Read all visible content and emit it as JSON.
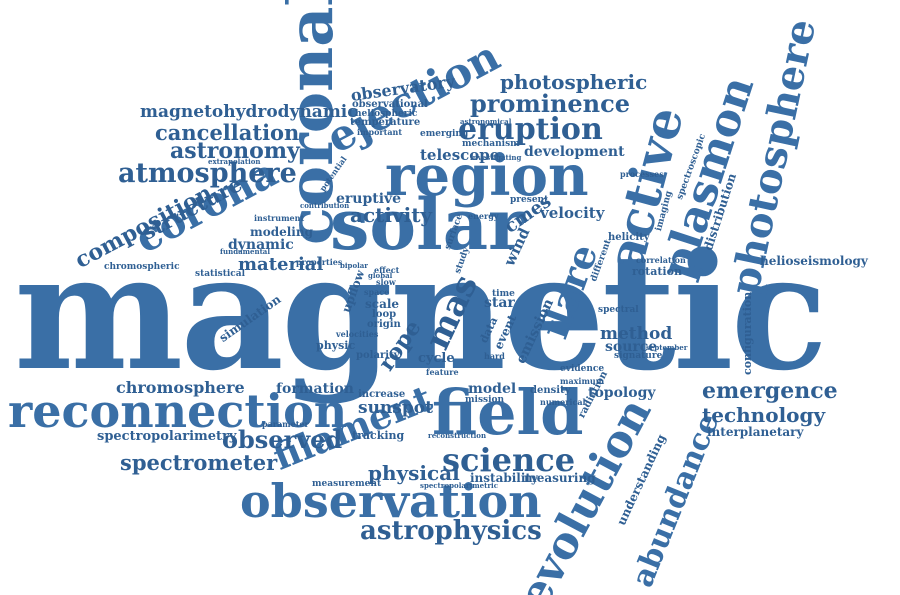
{
  "cloud": {
    "magnetic": "magnetic",
    "solar": "solar",
    "region": "region",
    "coronal": "coronal",
    "field": "field",
    "observation": "observation",
    "reconnection": "reconnection",
    "evolution": "evolution",
    "active": "active",
    "plasmon": "plasmon",
    "photosphere": "photosphere",
    "ejection": "ejection",
    "corona": "corona",
    "flare": "flare",
    "eruption": "eruption",
    "prominence": "prominence",
    "photospheric": "photospheric",
    "atmosphere": "atmosphere",
    "astronomy": "astronomy",
    "cancellation": "cancellation",
    "magnetohydrodynamic": "magnetohydrodynamic",
    "composition": "composition",
    "structure": "structure",
    "observatory": "observatory",
    "abundance": "abundance",
    "filament": "filament",
    "science": "science",
    "spectrometer": "spectrometer",
    "observed": "observed",
    "astrophysics": "astrophysics",
    "emergence": "emergence",
    "technology": "technology",
    "chromosphere": "chromosphere",
    "spectropolarimetry": "spectropolarimetry",
    "physical": "physical",
    "sunspot": "sunspot",
    "mas": "mas",
    "rope": "rope",
    "activity": "activity",
    "eruptive": "eruptive",
    "material": "material",
    "dynamic": "dynamic",
    "modeling": "modeling",
    "telescope": "telescope",
    "development": "development",
    "velocity": "velocity",
    "method": "method",
    "source": "source",
    "topology": "topology",
    "model": "model",
    "interplanetary": "interplanetary",
    "helioseismology": "helioseismology",
    "configuration": "configuration",
    "distribution": "distribution",
    "understanding": "understanding",
    "simulation": "simulation",
    "formation": "formation",
    "tracking": "tracking",
    "instability": "instability",
    "measuring": "measuring",
    "measurement": "measurement",
    "chromospheric": "chromospheric",
    "statistical": "statistical",
    "physic": "physic",
    "scale": "scale",
    "loop": "loop",
    "origin": "origin",
    "cycle": "cycle",
    "polarity": "polarity",
    "star": "star",
    "time": "time",
    "emission": "emission",
    "rotation": "rotation",
    "helicity": "helicity",
    "correlation": "correlation",
    "signature": "signature",
    "evidence": "evidence",
    "maximum": "maximum",
    "spectral": "spectral",
    "density": "density",
    "numerical": "numerical",
    "radiation": "radiation",
    "mission": "mission",
    "increase": "increase",
    "observational": "observational",
    "heliospheric": "heliospheric",
    "temperature": "temperature",
    "important": "important",
    "mechanism": "mechanism",
    "emerging": "emerging",
    "astronomical": "astronomical",
    "cmes": "cmes",
    "present": "present",
    "processes": "processes",
    "imaging": "imaging",
    "wind": "wind",
    "event": "event",
    "data": "data",
    "upflow": "upflow",
    "instrument": "instrument",
    "contribution": "contribution",
    "properties": "properties",
    "velocities": "velocities",
    "potential": "potential",
    "extrapolation": "extrapolation",
    "fundamental": "fundamental",
    "spectroscopic": "spectroscopic",
    "parameter": "parameter",
    "features": "feature",
    "different": "different",
    "global": "global",
    "bipolar": "bipolar",
    "space": "space",
    "slow": "slow",
    "effect": "effect",
    "energy": "energy",
    "hard": "hard",
    "spectropolarimetric": "spectropolarimetric",
    "reconstruction": "reconstruction",
    "investigating": "investigating",
    "september": "september",
    "study": "study",
    "surface": "surface"
  }
}
